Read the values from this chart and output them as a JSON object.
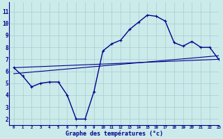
{
  "bg_color": "#cbeaea",
  "grid_color": "#a8cccc",
  "line_color": "#00008b",
  "xlabel": "Graphe des températures (°c)",
  "ylabel_ticks": [
    2,
    3,
    4,
    5,
    6,
    7,
    8,
    9,
    10,
    11
  ],
  "xlim": [
    -0.5,
    23
  ],
  "ylim": [
    1.5,
    11.8
  ],
  "curve_x": [
    0,
    1,
    2,
    3,
    4,
    5,
    6,
    7,
    8,
    9,
    10,
    11,
    12,
    13,
    14,
    15,
    16,
    17,
    18,
    19,
    20,
    21,
    22,
    23
  ],
  "curve_y": [
    6.3,
    5.6,
    4.7,
    5.0,
    5.1,
    5.1,
    4.0,
    2.0,
    2.0,
    4.3,
    7.7,
    8.3,
    8.6,
    9.5,
    10.1,
    10.7,
    10.6,
    10.2,
    8.4,
    8.1,
    8.5,
    8.0,
    8.0,
    7.0
  ],
  "line1_x": [
    0,
    23
  ],
  "line1_y": [
    6.3,
    7.0
  ],
  "line2_x": [
    0,
    23
  ],
  "line2_y": [
    5.8,
    7.3
  ],
  "xtick_labels": [
    "0",
    "1",
    "2",
    "3",
    "4",
    "5",
    "6",
    "7",
    "8",
    "9",
    "10",
    "11",
    "12",
    "13",
    "14",
    "15",
    "16",
    "17",
    "18",
    "19",
    "20",
    "21",
    "22",
    "23"
  ]
}
